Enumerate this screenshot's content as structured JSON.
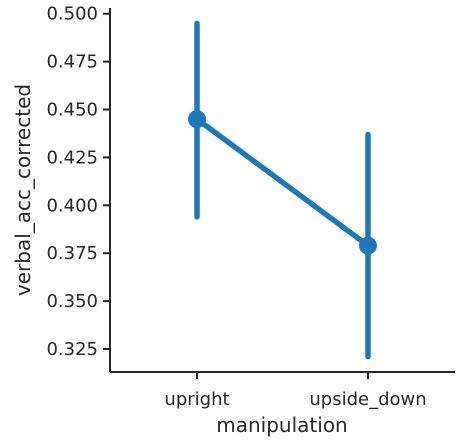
{
  "chart_data": {
    "type": "point",
    "categories": [
      "upright",
      "upside_down"
    ],
    "series": [
      {
        "values": [
          0.445,
          0.379
        ],
        "ci_low": [
          0.394,
          0.321
        ],
        "ci_high": [
          0.495,
          0.437
        ],
        "color": "#1f77b4"
      }
    ],
    "xlabel": "manipulation",
    "ylabel": "verbal_acc_corrected",
    "ylim": [
      0.313,
      0.503
    ],
    "yticks": [
      0.325,
      0.35,
      0.375,
      0.4,
      0.425,
      0.45,
      0.475,
      0.5
    ],
    "ytick_labels": [
      "0.325",
      "0.350",
      "0.375",
      "0.400",
      "0.425",
      "0.450",
      "0.475",
      "0.500"
    ],
    "grid": false,
    "legend": "none"
  }
}
